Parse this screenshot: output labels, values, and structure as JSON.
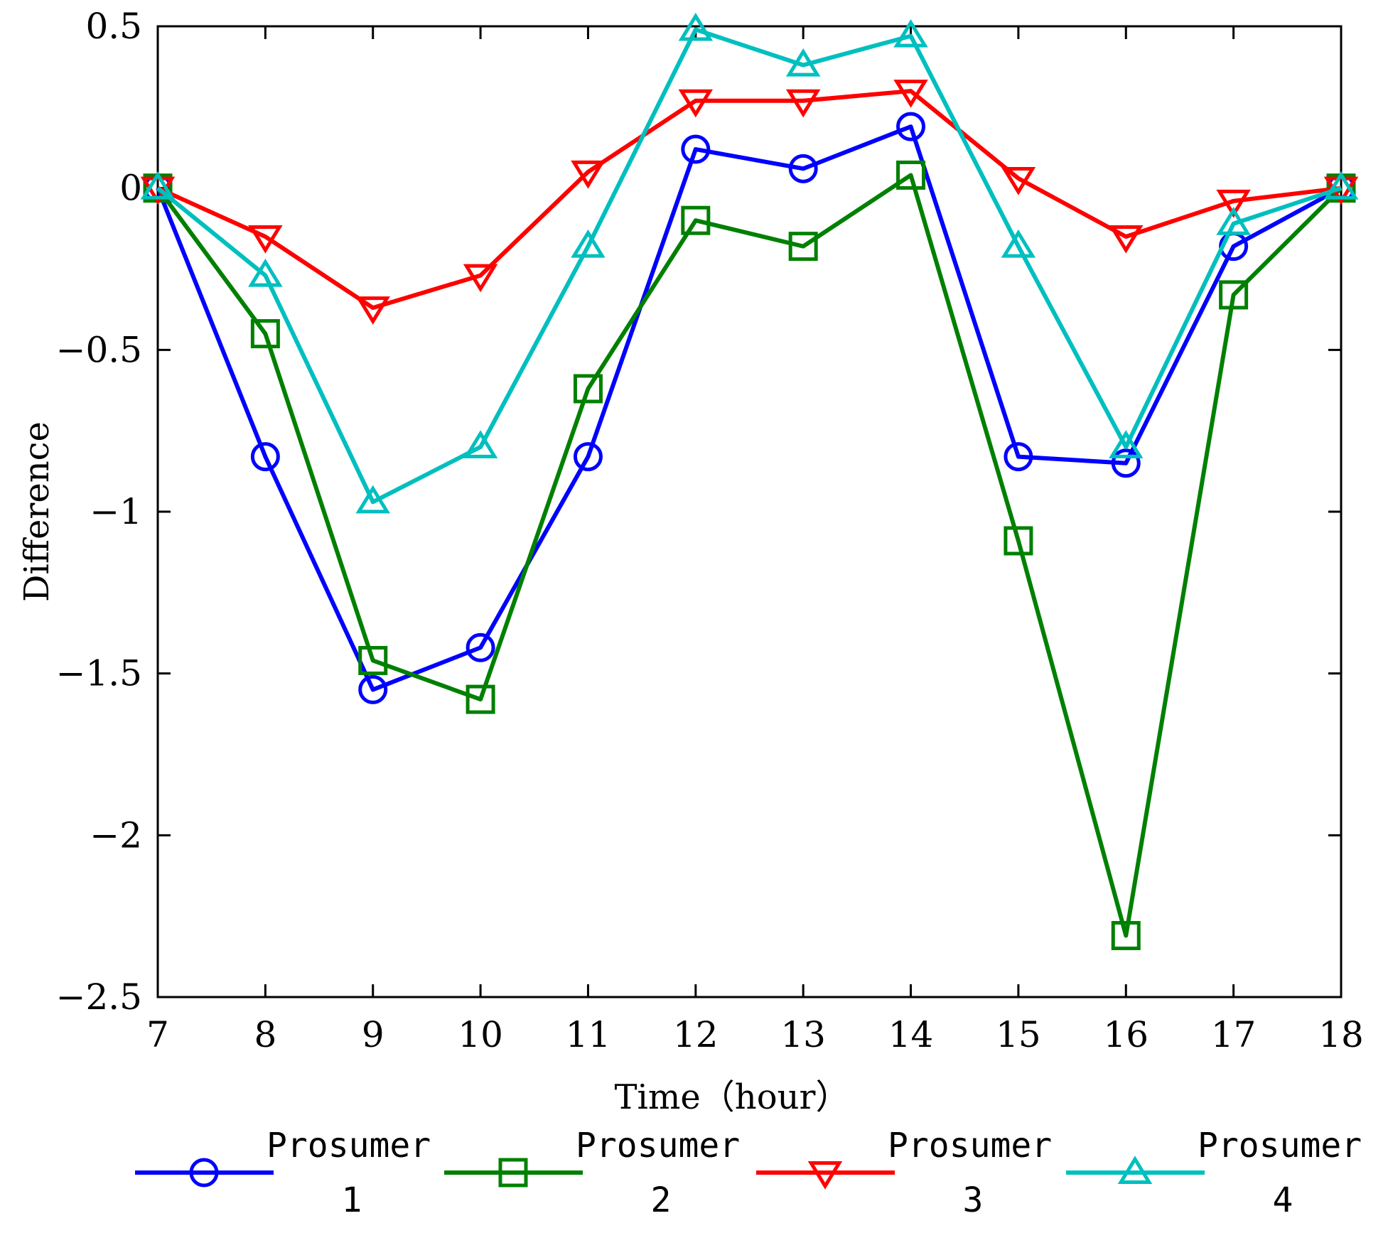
{
  "chart_data": {
    "type": "line",
    "title": "",
    "xlabel": "Time（hour）",
    "ylabel": "Difference",
    "xlim": [
      7,
      18
    ],
    "ylim": [
      -2.5,
      0.5
    ],
    "x": [
      7,
      8,
      9,
      10,
      11,
      12,
      13,
      14,
      15,
      16,
      17,
      18
    ],
    "xticks": [
      7,
      8,
      9,
      10,
      11,
      12,
      13,
      14,
      15,
      16,
      17,
      18
    ],
    "xtick_labels": [
      "7",
      "8",
      "9",
      "10",
      "11",
      "12",
      "13",
      "14",
      "15",
      "16",
      "17",
      "18"
    ],
    "yticks": [
      0.5,
      0,
      -0.5,
      -1,
      -1.5,
      -2,
      -2.5
    ],
    "ytick_labels": [
      "0.5",
      "0",
      "−0.5",
      "−1",
      "−1.5",
      "−2",
      "−2.5"
    ],
    "grid": false,
    "legend_position": "bottom",
    "series": [
      {
        "name": "Prosumer 1",
        "label_line1": "Prosumer",
        "label_line2": "1",
        "color": "#0000ff",
        "marker": "circle",
        "values": [
          0,
          -0.83,
          -1.55,
          -1.42,
          -0.83,
          0.12,
          0.06,
          0.19,
          -0.83,
          -0.85,
          -0.18,
          0
        ]
      },
      {
        "name": "Prosumer 2",
        "label_line1": "Prosumer",
        "label_line2": "2",
        "color": "#008000",
        "marker": "square",
        "values": [
          0,
          -0.45,
          -1.46,
          -1.58,
          -0.62,
          -0.1,
          -0.18,
          0.04,
          -1.09,
          -2.31,
          -0.33,
          0
        ]
      },
      {
        "name": "Prosumer 3",
        "label_line1": "Prosumer",
        "label_line2": "3",
        "color": "#ff0000",
        "marker": "triangle-down",
        "values": [
          0,
          -0.15,
          -0.37,
          -0.27,
          0.05,
          0.27,
          0.27,
          0.3,
          0.03,
          -0.15,
          -0.04,
          0
        ]
      },
      {
        "name": "Prosumer 4",
        "label_line1": "Prosumer",
        "label_line2": "4",
        "color": "#00bfbf",
        "marker": "triangle-up",
        "values": [
          0,
          -0.27,
          -0.97,
          -0.8,
          -0.18,
          0.49,
          0.38,
          0.47,
          -0.18,
          -0.8,
          -0.11,
          0
        ]
      }
    ]
  }
}
